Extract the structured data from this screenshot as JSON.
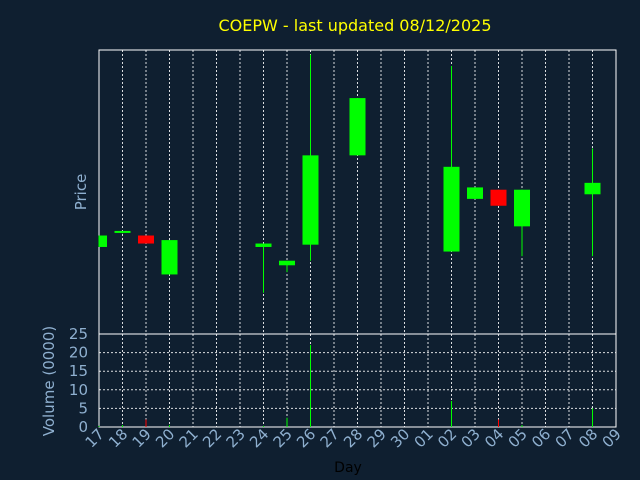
{
  "chart_data": [
    {
      "type": "candlestick",
      "title": "COEPW - last updated 08/12/2025",
      "ylabel": "Price",
      "xlabel": "Day",
      "categories": [
        "17",
        "18",
        "19",
        "20",
        "21",
        "22",
        "23",
        "24",
        "25",
        "26",
        "27",
        "28",
        "29",
        "30",
        "01",
        "02",
        "03",
        "04",
        "05",
        "06",
        "07",
        "08",
        "09"
      ],
      "ylim": [
        0,
        100
      ],
      "candles": [
        {
          "day": "17",
          "open": 26,
          "high": 31,
          "low": 26,
          "close": 31
        },
        {
          "day": "18",
          "open": 32.5,
          "high": 33,
          "low": 32,
          "close": 33
        },
        {
          "day": "19",
          "open": 31,
          "high": 31,
          "low": 27.5,
          "close": 27.5
        },
        {
          "day": "20",
          "open": 14,
          "high": 29,
          "low": 14,
          "close": 29
        },
        {
          "day": "24",
          "open": 26,
          "high": 27.5,
          "low": 6,
          "close": 27.5
        },
        {
          "day": "25",
          "open": 18,
          "high": 20,
          "low": 15,
          "close": 20
        },
        {
          "day": "26",
          "open": 27,
          "high": 110,
          "low": 20,
          "close": 66
        },
        {
          "day": "28",
          "open": 66,
          "high": 91,
          "low": 66,
          "close": 91
        },
        {
          "day": "02",
          "open": 24,
          "high": 105,
          "low": 24,
          "close": 61
        },
        {
          "day": "03",
          "open": 47,
          "high": 52,
          "low": 47,
          "close": 52
        },
        {
          "day": "04",
          "open": 51,
          "high": 51,
          "low": 44,
          "close": 44
        },
        {
          "day": "05",
          "open": 35,
          "high": 51,
          "low": 22,
          "close": 51
        },
        {
          "day": "08",
          "open": 49,
          "high": 69,
          "low": 22,
          "close": 54
        }
      ],
      "colors": {
        "up": "#00ff00",
        "down": "#ff0000"
      }
    },
    {
      "type": "bar",
      "ylabel": "Volume (0000)",
      "xlabel": "Day",
      "yticks": [
        "0",
        "5",
        "10",
        "15",
        "20",
        "25"
      ],
      "ylim": [
        0,
        25
      ],
      "categories": [
        "17",
        "18",
        "19",
        "20",
        "21",
        "22",
        "23",
        "24",
        "25",
        "26",
        "27",
        "28",
        "29",
        "30",
        "01",
        "02",
        "03",
        "04",
        "05",
        "06",
        "07",
        "08",
        "09"
      ],
      "values": [
        0.3,
        0.5,
        2,
        0.5,
        0,
        0,
        0,
        0.3,
        2.5,
        22,
        0,
        0,
        0,
        0,
        0,
        7,
        0,
        2,
        0.5,
        0,
        0,
        5,
        0
      ],
      "bar_colors": [
        "green",
        "green",
        "red",
        "green",
        "green",
        "green",
        "green",
        "green",
        "green",
        "green",
        "green",
        "green",
        "green",
        "green",
        "green",
        "green",
        "green",
        "red",
        "green",
        "green",
        "green",
        "green",
        "green"
      ]
    }
  ]
}
